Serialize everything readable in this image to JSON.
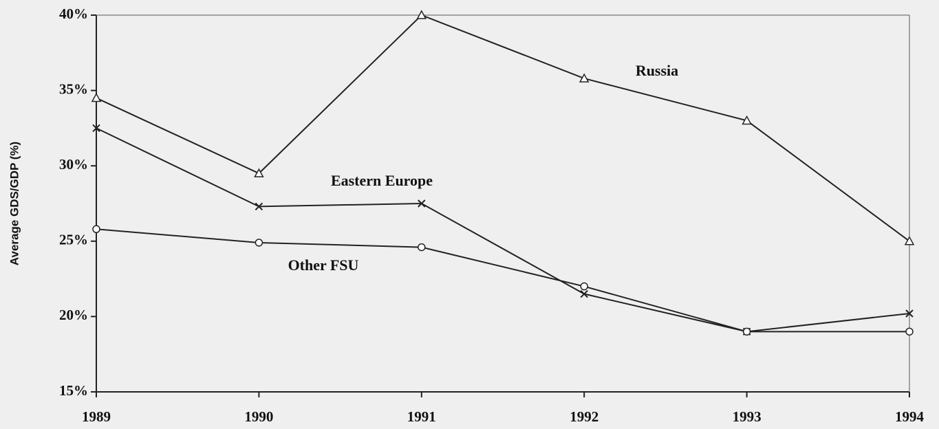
{
  "chart_data": {
    "type": "line",
    "ylabel": "Average GDS/GDP (%)",
    "categories": [
      "1989",
      "1990",
      "1991",
      "1992",
      "1993",
      "1994"
    ],
    "series": [
      {
        "name": "Russia",
        "color": "#222222",
        "marker": "triangle",
        "values": [
          34.5,
          29.5,
          40,
          35.8,
          33,
          25
        ]
      },
      {
        "name": "Eastern Europe",
        "color": "#222222",
        "marker": "x",
        "values": [
          32.5,
          27.3,
          27.5,
          21.5,
          19,
          20.2
        ]
      },
      {
        "name": "Other FSU",
        "color": "#222222",
        "marker": "circle",
        "values": [
          25.8,
          24.9,
          24.6,
          22,
          19,
          19
        ]
      }
    ],
    "ylim": [
      15,
      40
    ],
    "yticks": [
      {
        "value": 15,
        "label": "15%"
      },
      {
        "value": 20,
        "label": "20%"
      },
      {
        "value": 25,
        "label": "25%"
      },
      {
        "value": 30,
        "label": "30%"
      },
      {
        "value": 35,
        "label": "35%"
      },
      {
        "value": 40,
        "label": "40%"
      }
    ],
    "grid": false
  }
}
